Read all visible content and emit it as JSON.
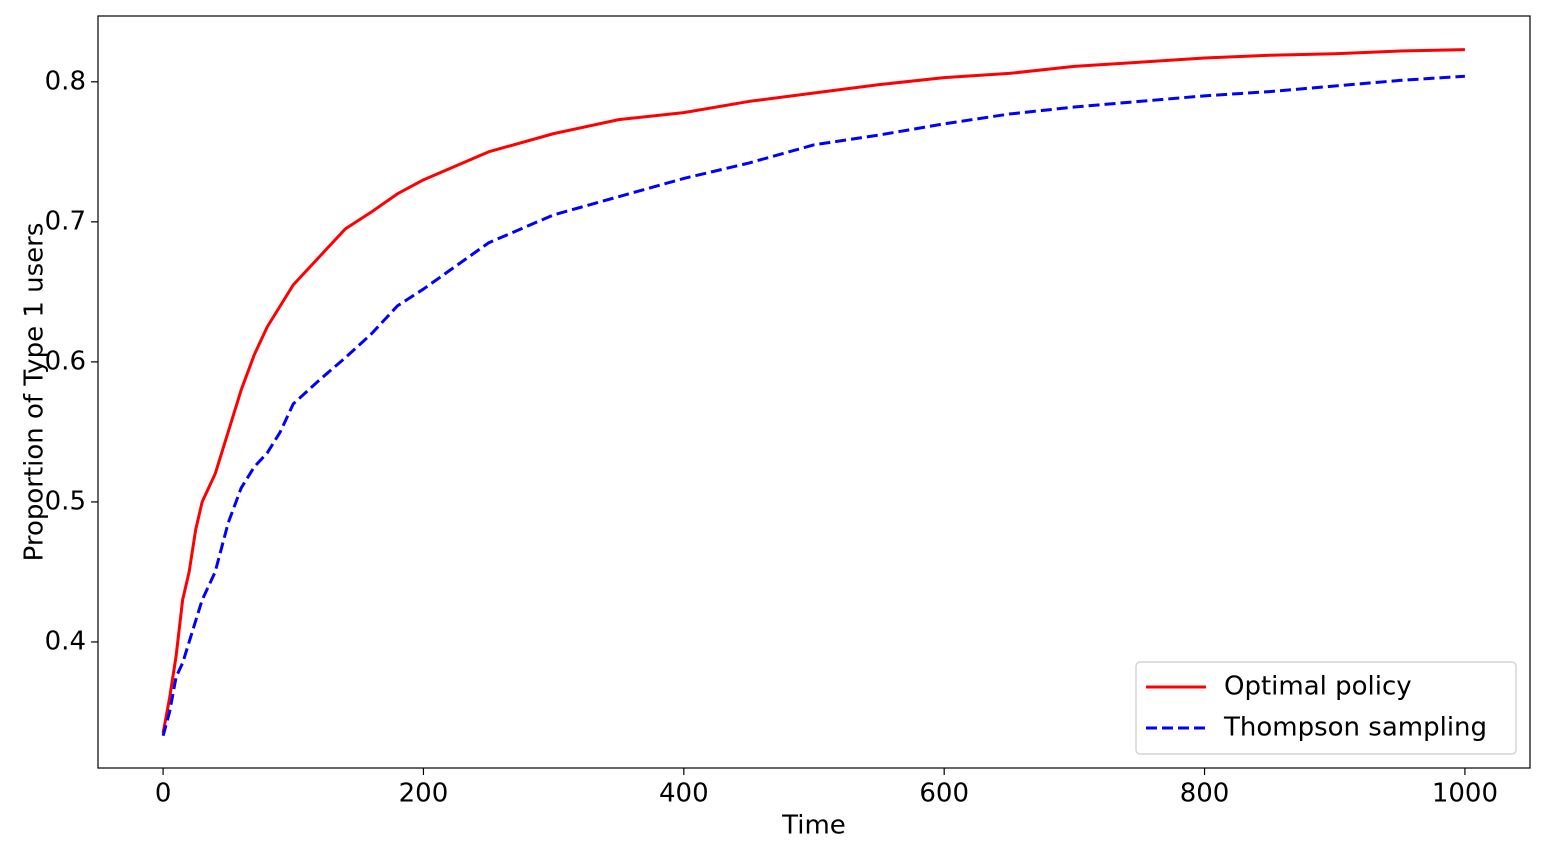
{
  "chart_data": {
    "type": "line",
    "xlabel": "Time",
    "ylabel": "Proportion of Type 1 users",
    "x": [
      0,
      5,
      10,
      15,
      20,
      25,
      30,
      40,
      50,
      60,
      70,
      80,
      90,
      100,
      120,
      140,
      160,
      180,
      200,
      250,
      300,
      350,
      400,
      450,
      500,
      550,
      600,
      650,
      700,
      750,
      800,
      850,
      900,
      950,
      1000
    ],
    "series": [
      {
        "name": "Optimal policy",
        "color": "#ff0000",
        "linestyle": "solid",
        "values": [
          0.335,
          0.36,
          0.39,
          0.43,
          0.45,
          0.48,
          0.5,
          0.52,
          0.55,
          0.58,
          0.605,
          0.625,
          0.64,
          0.655,
          0.675,
          0.695,
          0.707,
          0.72,
          0.73,
          0.75,
          0.763,
          0.773,
          0.778,
          0.786,
          0.792,
          0.798,
          0.803,
          0.806,
          0.811,
          0.814,
          0.817,
          0.819,
          0.82,
          0.822,
          0.823
        ]
      },
      {
        "name": "Thompson sampling",
        "color": "#0000ff",
        "linestyle": "dashed",
        "values": [
          0.333,
          0.35,
          0.375,
          0.385,
          0.4,
          0.415,
          0.43,
          0.45,
          0.485,
          0.51,
          0.525,
          0.535,
          0.55,
          0.57,
          0.587,
          0.603,
          0.62,
          0.64,
          0.652,
          0.685,
          0.705,
          0.718,
          0.731,
          0.742,
          0.755,
          0.762,
          0.77,
          0.777,
          0.782,
          0.786,
          0.79,
          0.793,
          0.797,
          0.801,
          0.804
        ]
      }
    ],
    "xlim": [
      -50,
      1050
    ],
    "ylim": [
      0.31,
      0.847
    ],
    "xticks": [
      0,
      200,
      400,
      600,
      800,
      1000
    ],
    "yticks": [
      0.4,
      0.5,
      0.6,
      0.7,
      0.8
    ],
    "grid": false,
    "legend_position": "lower right"
  }
}
